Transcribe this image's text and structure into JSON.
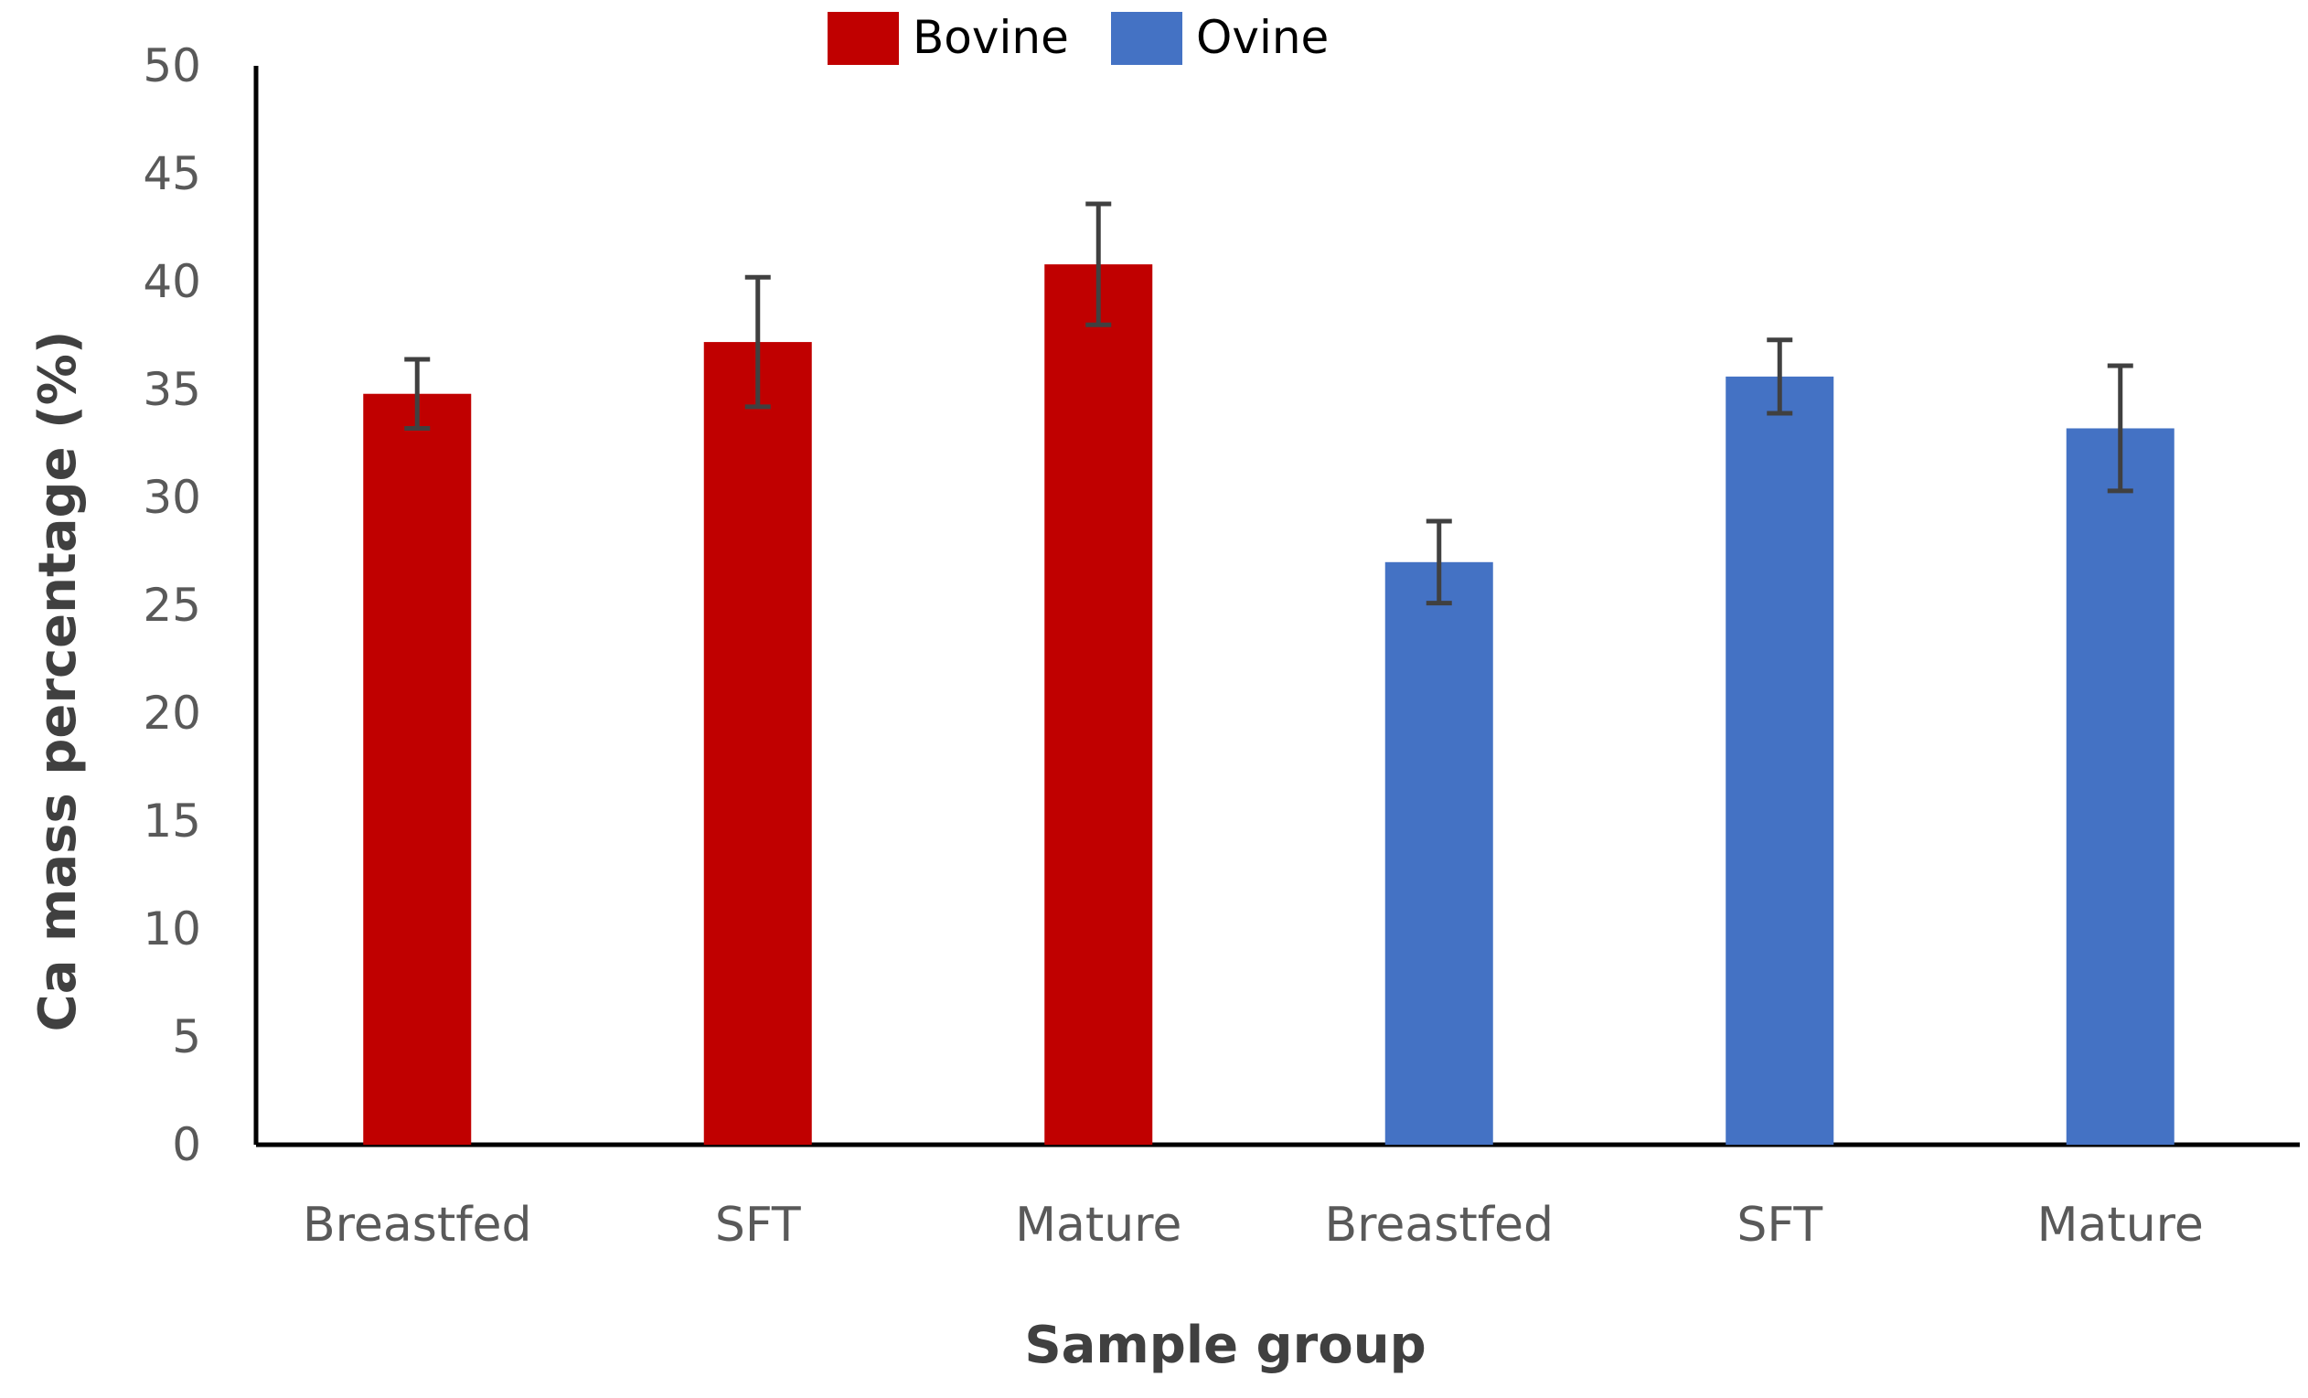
{
  "chart_data": {
    "type": "bar",
    "title": "",
    "xlabel": "Sample group",
    "ylabel": "Ca mass percentage (%)",
    "ylim": [
      0,
      50
    ],
    "yticks": [
      0,
      5,
      10,
      15,
      20,
      25,
      30,
      35,
      40,
      45,
      50
    ],
    "grid": false,
    "legend_position": "top",
    "legend": [
      {
        "name": "Bovine",
        "color": "#C00000"
      },
      {
        "name": "Ovine",
        "color": "#4472C4"
      }
    ],
    "bars": [
      {
        "category": "Breastfed",
        "group": "Bovine",
        "value": 34.8,
        "error": 1.6,
        "color": "#C00000"
      },
      {
        "category": "SFT",
        "group": "Bovine",
        "value": 37.2,
        "error": 3.0,
        "color": "#C00000"
      },
      {
        "category": "Mature",
        "group": "Bovine",
        "value": 40.8,
        "error": 2.8,
        "color": "#C00000"
      },
      {
        "category": "Breastfed",
        "group": "Ovine",
        "value": 27.0,
        "error": 1.9,
        "color": "#4472C4"
      },
      {
        "category": "SFT",
        "group": "Ovine",
        "value": 35.6,
        "error": 1.7,
        "color": "#4472C4"
      },
      {
        "category": "Mature",
        "group": "Ovine",
        "value": 33.2,
        "error": 2.9,
        "color": "#4472C4"
      }
    ]
  }
}
